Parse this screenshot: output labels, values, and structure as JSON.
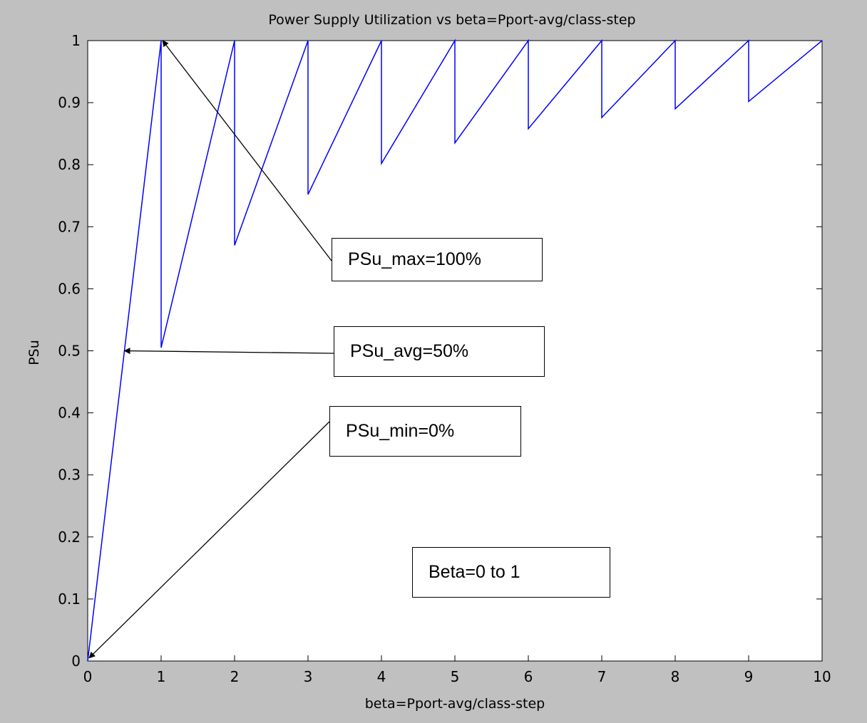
{
  "chart_data": {
    "type": "line",
    "title": "Power Supply Utilization  vs beta=Pport-avg/class-step",
    "xlabel": "beta=Pport-avg/class-step",
    "ylabel": "PSu",
    "xlim": [
      0,
      10
    ],
    "ylim": [
      0,
      1
    ],
    "xticks": [
      0,
      1,
      2,
      3,
      4,
      5,
      6,
      7,
      8,
      9,
      10
    ],
    "yticks": [
      0,
      0.1,
      0.2,
      0.3,
      0.4,
      0.5,
      0.6,
      0.7,
      0.8,
      0.9,
      1
    ],
    "grid": false,
    "series": [
      {
        "color": "#0000ff",
        "x": [
          0,
          1,
          1,
          2,
          2,
          3,
          3,
          4,
          4,
          5,
          5,
          6,
          6,
          7,
          7,
          8,
          8,
          9,
          9,
          10
        ],
        "y": [
          0,
          1,
          0.505,
          1,
          0.67,
          1,
          0.752,
          1,
          0.802,
          1,
          0.835,
          1,
          0.858,
          1,
          0.876,
          1,
          0.89,
          1,
          0.902,
          1
        ]
      }
    ],
    "annotations": [
      {
        "text": "PSu_max=100%",
        "arrow_to": [
          1.02,
          1.0
        ]
      },
      {
        "text": "PSu_avg=50%",
        "arrow_to": [
          0.5,
          0.5
        ]
      },
      {
        "text": "PSu_min=0%",
        "arrow_to": [
          0.02,
          0.005
        ]
      },
      {
        "text": "Beta=0 to 1"
      }
    ]
  }
}
